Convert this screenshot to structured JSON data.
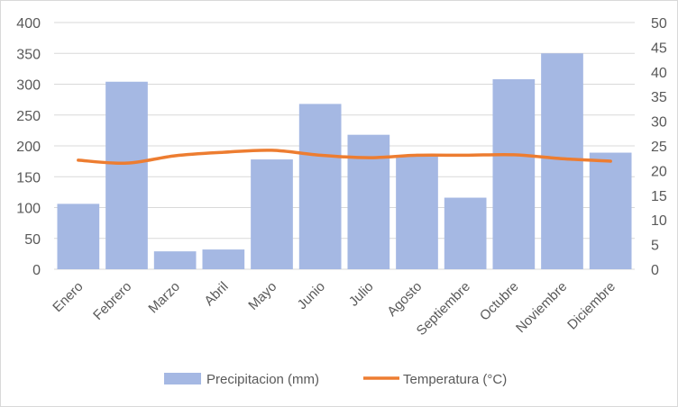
{
  "chart_data": {
    "type": "bar",
    "categories": [
      "Enero",
      "Febrero",
      "Marzo",
      "Abril",
      "Mayo",
      "Junio",
      "Julio",
      "Agosto",
      "Septiembre",
      "Octubre",
      "Noviembre",
      "Diciembre"
    ],
    "series": [
      {
        "name": "Precipitacion (mm)",
        "type": "bar",
        "axis": "left",
        "color": "#a5b8e3",
        "values": [
          106,
          304,
          29,
          32,
          178,
          268,
          218,
          185,
          116,
          308,
          350,
          189
        ]
      },
      {
        "name": "Temperatura (°C)",
        "type": "line",
        "axis": "right",
        "color": "#ed7d31",
        "values": [
          22.1,
          21.5,
          23.0,
          23.7,
          24.1,
          23.1,
          22.6,
          23.1,
          23.1,
          23.2,
          22.4,
          21.9
        ]
      }
    ],
    "y_left": {
      "min": 0,
      "max": 400,
      "step": 50,
      "ticks": [
        "0",
        "50",
        "100",
        "150",
        "200",
        "250",
        "300",
        "350",
        "400"
      ]
    },
    "y_right": {
      "min": 0,
      "max": 50,
      "step": 5,
      "ticks": [
        "0",
        "5",
        "10",
        "15",
        "20",
        "25",
        "30",
        "35",
        "40",
        "45",
        "50"
      ]
    },
    "grid": true,
    "legend_position": "bottom",
    "gridline_color": "#d9d9d9"
  }
}
